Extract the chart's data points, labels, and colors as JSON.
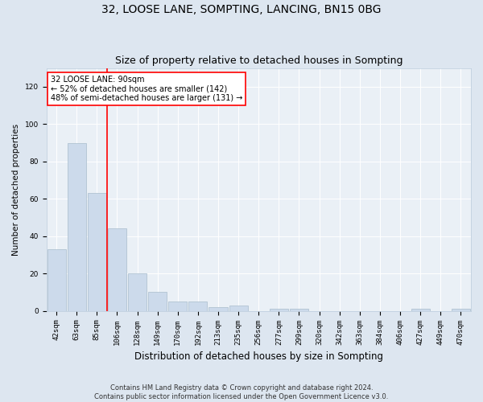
{
  "title": "32, LOOSE LANE, SOMPTING, LANCING, BN15 0BG",
  "subtitle": "Size of property relative to detached houses in Sompting",
  "xlabel": "Distribution of detached houses by size in Sompting",
  "ylabel": "Number of detached properties",
  "categories": [
    "42sqm",
    "63sqm",
    "85sqm",
    "106sqm",
    "128sqm",
    "149sqm",
    "170sqm",
    "192sqm",
    "213sqm",
    "235sqm",
    "256sqm",
    "277sqm",
    "299sqm",
    "320sqm",
    "342sqm",
    "363sqm",
    "384sqm",
    "406sqm",
    "427sqm",
    "449sqm",
    "470sqm"
  ],
  "values": [
    33,
    90,
    63,
    44,
    20,
    10,
    5,
    5,
    2,
    3,
    0,
    1,
    1,
    0,
    0,
    0,
    0,
    0,
    1,
    0,
    1
  ],
  "bar_color": "#ccdaeb",
  "bar_edge_color": "#a8bccc",
  "vline_x_index": 2.5,
  "annotation_text": "32 LOOSE LANE: 90sqm\n← 52% of detached houses are smaller (142)\n48% of semi-detached houses are larger (131) →",
  "annotation_box_color": "white",
  "annotation_box_edge": "red",
  "vline_color": "red",
  "ylim": [
    0,
    130
  ],
  "yticks": [
    0,
    20,
    40,
    60,
    80,
    100,
    120
  ],
  "background_color": "#dde6f0",
  "plot_bg_color": "#eaf0f6",
  "footer_line1": "Contains HM Land Registry data © Crown copyright and database right 2024.",
  "footer_line2": "Contains public sector information licensed under the Open Government Licence v3.0.",
  "title_fontsize": 10,
  "subtitle_fontsize": 9,
  "tick_fontsize": 6.5,
  "ylabel_fontsize": 7.5,
  "xlabel_fontsize": 8.5,
  "footer_fontsize": 6,
  "annotation_fontsize": 7
}
